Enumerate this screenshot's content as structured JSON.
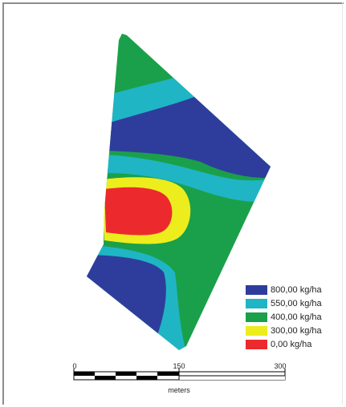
{
  "legend": {
    "items": [
      {
        "label": "800,00 kg/ha",
        "color": "#2e3d9c"
      },
      {
        "label": "550,00 kg/ha",
        "color": "#1fb5c4"
      },
      {
        "label": "400,00 kg/ha",
        "color": "#1aa04a"
      },
      {
        "label": "300,00 kg/ha",
        "color": "#eded1e"
      },
      {
        "label": "0,00 kg/ha",
        "color": "#ec2a2e"
      }
    ]
  },
  "scale_bar": {
    "ticks": [
      "0",
      "150",
      "300"
    ],
    "unit": "meters"
  }
}
